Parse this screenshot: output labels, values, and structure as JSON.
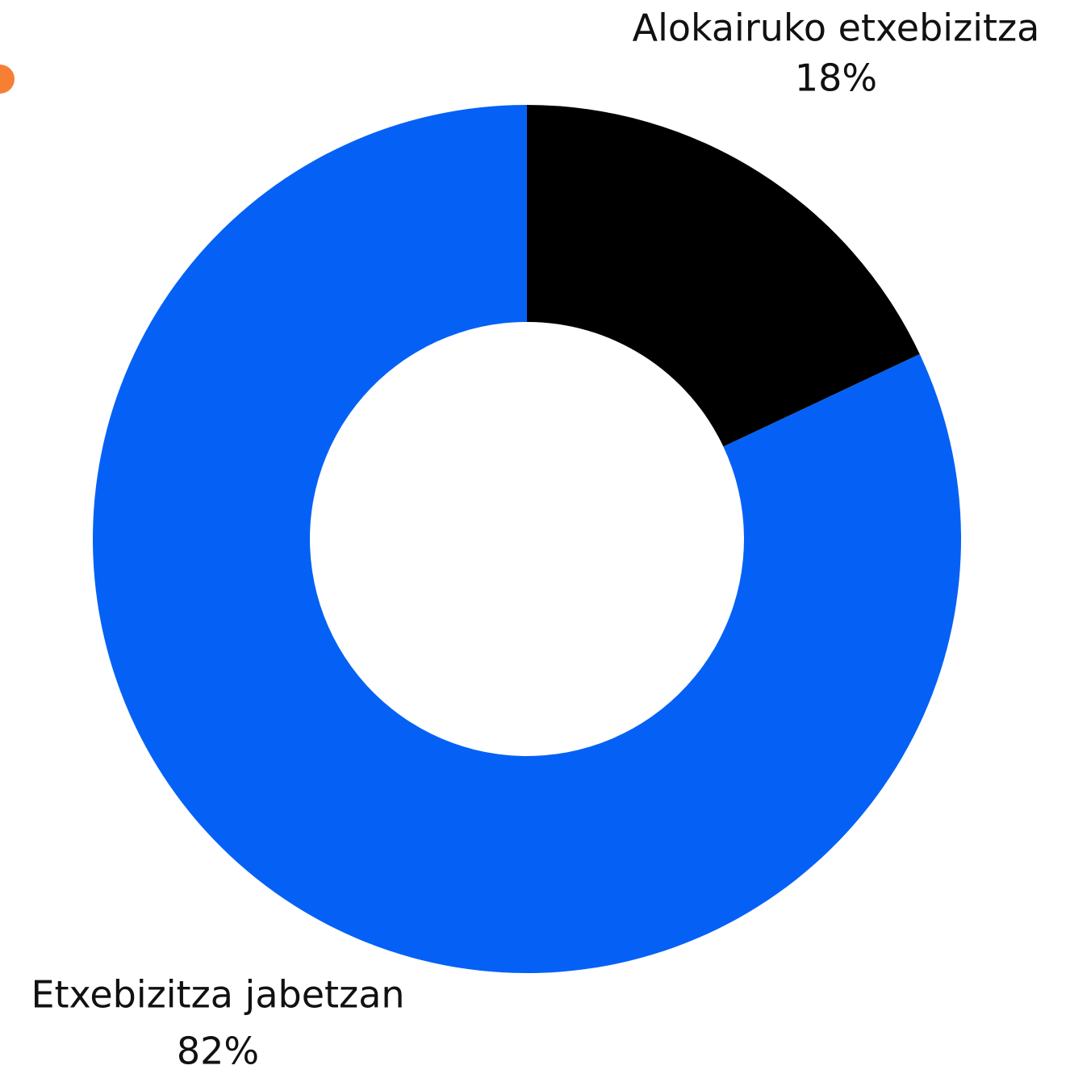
{
  "chart_data": {
    "type": "pie",
    "categories": [
      "Alokairuko etxebizitza",
      "Etxebizitza jabetzan"
    ],
    "values": [
      18,
      82
    ],
    "value_labels": [
      "18%",
      "82%"
    ],
    "colors": [
      "#000000",
      "#0561f5"
    ]
  }
}
